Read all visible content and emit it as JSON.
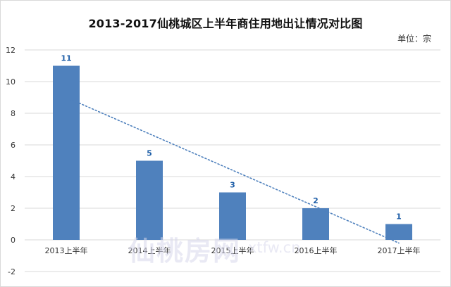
{
  "chart_data": {
    "type": "bar",
    "title": "2013-2017仙桃城区上半年商住用地出让情况对比图",
    "unit_label": "单位：宗",
    "categories": [
      "2013上半年",
      "2014上半年",
      "2015上半年",
      "2016上半年",
      "2017上半年"
    ],
    "values": [
      11,
      5,
      3,
      2,
      1
    ],
    "data_labels": [
      "11",
      "5",
      "3",
      "2",
      "1"
    ],
    "ylim": [
      -2,
      12
    ],
    "yticks": [
      "-2",
      "0",
      "2",
      "4",
      "6",
      "8",
      "10",
      "12"
    ],
    "grid": true,
    "trendline": {
      "type": "linear",
      "style": "dotted"
    },
    "colors": {
      "bar": "#4f81bd",
      "label": "#1f5fa8",
      "trend": "#4f81bd",
      "grid": "#d9d9d9"
    }
  },
  "watermark": {
    "text": "仙桃房网",
    "domain": "xtfw.cn"
  }
}
